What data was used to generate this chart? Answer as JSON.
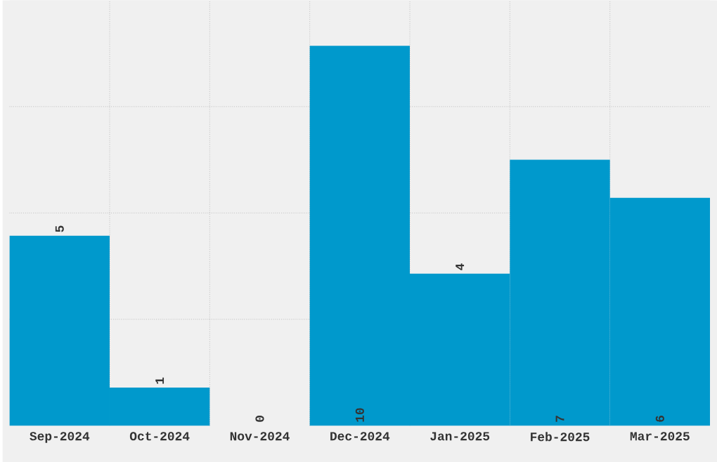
{
  "chart_data": {
    "type": "bar",
    "categories": [
      "Sep-2024",
      "Oct-2024",
      "Nov-2024",
      "Dec-2024",
      "Jan-2025",
      "Feb-2025",
      "Mar-2025"
    ],
    "values": [
      5,
      1,
      0,
      10,
      4,
      7,
      6
    ],
    "color": "#0099cc",
    "data_labels": true,
    "grid": true,
    "ylim": [
      0,
      11.2
    ],
    "yticks": [
      {
        "value": 2.8,
        "label": null
      },
      {
        "value": 5.6,
        "label": null
      },
      {
        "value": 8.4,
        "label": null
      }
    ]
  }
}
